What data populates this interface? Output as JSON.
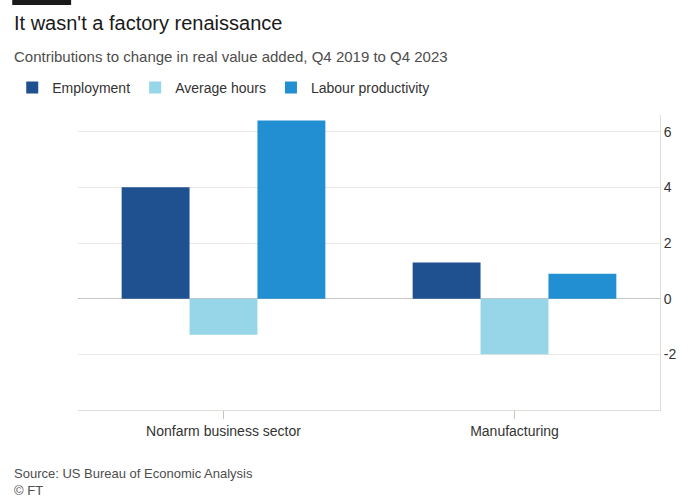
{
  "chart_data": {
    "type": "bar",
    "title": "It wasn't a factory renaissance",
    "subtitle": "Contributions to change in real value added, Q4 2019 to Q4 2023",
    "source": "Source: US Bureau of Economic Analysis",
    "credit": "© FT",
    "categories": [
      "Nonfarm business sector",
      "Manufacturing"
    ],
    "series": [
      {
        "name": "Employment",
        "color": "#1f5190",
        "values": [
          4.0,
          1.3
        ]
      },
      {
        "name": "Average hours",
        "color": "#97d5e8",
        "values": [
          -1.3,
          -2.0
        ]
      },
      {
        "name": "Labour productivity",
        "color": "#228fd3",
        "values": [
          6.4,
          0.9
        ]
      }
    ],
    "ylim": [
      -4,
      6.6
    ],
    "yticks": [
      -2,
      0,
      2,
      4,
      6
    ],
    "grid": true,
    "legend": "top left"
  }
}
